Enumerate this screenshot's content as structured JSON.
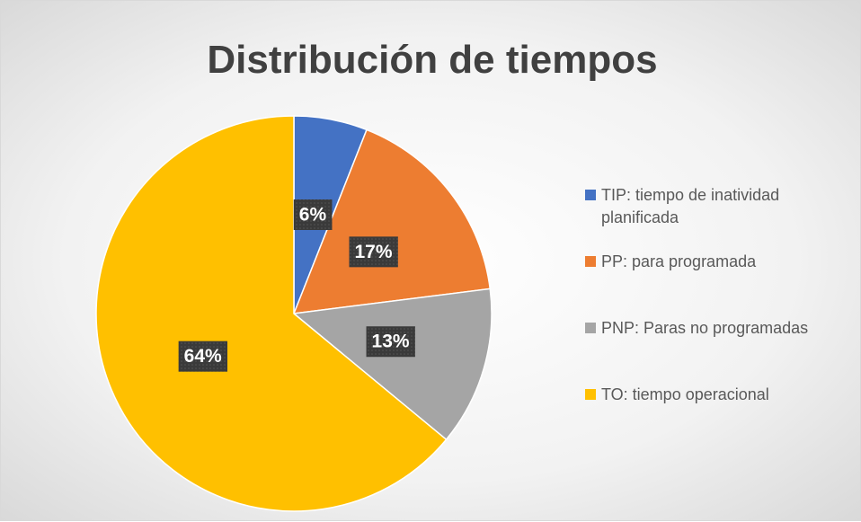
{
  "chart_data": {
    "type": "pie",
    "title": "Distribución de tiempos",
    "categories": [
      "TIP: tiempo de inatividad planificada",
      "PP: para programada",
      "PNP: Paras no programadas",
      "TO: tiempo operacional"
    ],
    "values": [
      6,
      17,
      13,
      64
    ],
    "value_labels": [
      "6%",
      "17%",
      "13%",
      "64%"
    ],
    "colors": [
      "#4472c4",
      "#ed7d31",
      "#a5a5a5",
      "#ffc000"
    ],
    "legend": "right"
  }
}
